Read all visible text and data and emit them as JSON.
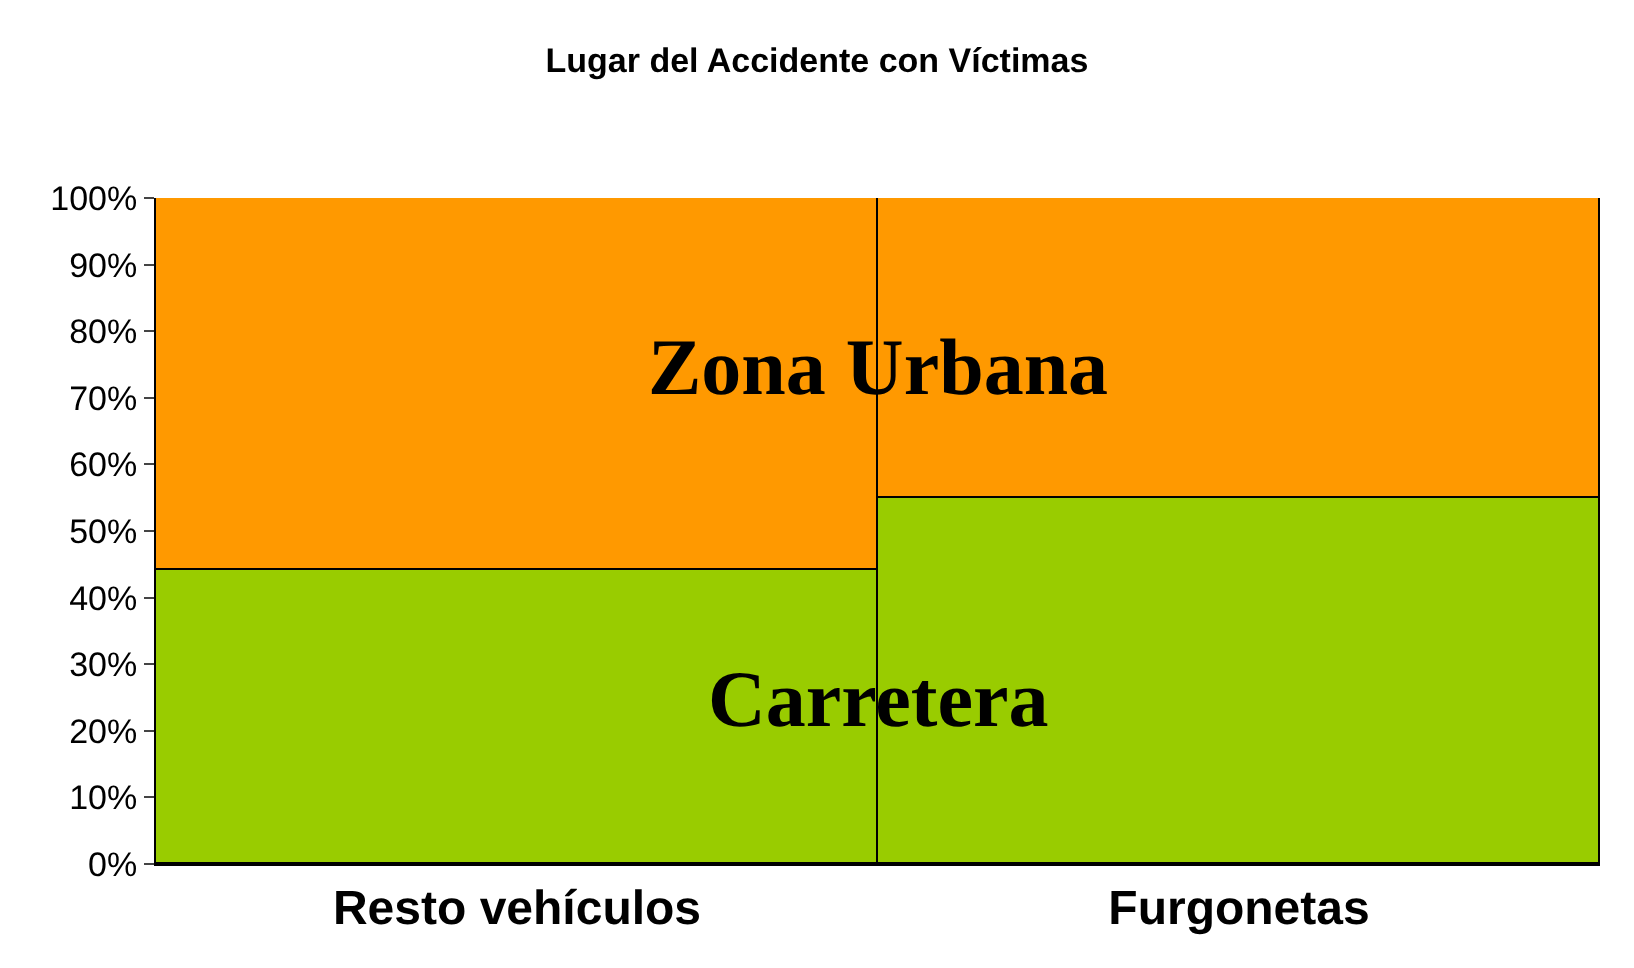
{
  "chart_data": {
    "type": "bar",
    "title": "Lugar del Accidente con Víctimas",
    "stacked": true,
    "categories": [
      "Resto vehículos",
      "Furgonetas"
    ],
    "series": [
      {
        "name": "Carretera",
        "color": "#99cc00",
        "values": [
          44,
          55
        ]
      },
      {
        "name": "Zona Urbana",
        "color": "#ff9900",
        "values": [
          56,
          45
        ]
      }
    ],
    "ylim": [
      0,
      100
    ],
    "yticks": [
      {
        "value": 0,
        "label": "0%"
      },
      {
        "value": 10,
        "label": "10%"
      },
      {
        "value": 20,
        "label": "20%"
      },
      {
        "value": 30,
        "label": "30%"
      },
      {
        "value": 40,
        "label": "40%"
      },
      {
        "value": 50,
        "label": "50%"
      },
      {
        "value": 60,
        "label": "60%"
      },
      {
        "value": 70,
        "label": "70%"
      },
      {
        "value": 80,
        "label": "80%"
      },
      {
        "value": 90,
        "label": "90%"
      },
      {
        "value": 100,
        "label": "100%"
      }
    ],
    "legend": false
  }
}
